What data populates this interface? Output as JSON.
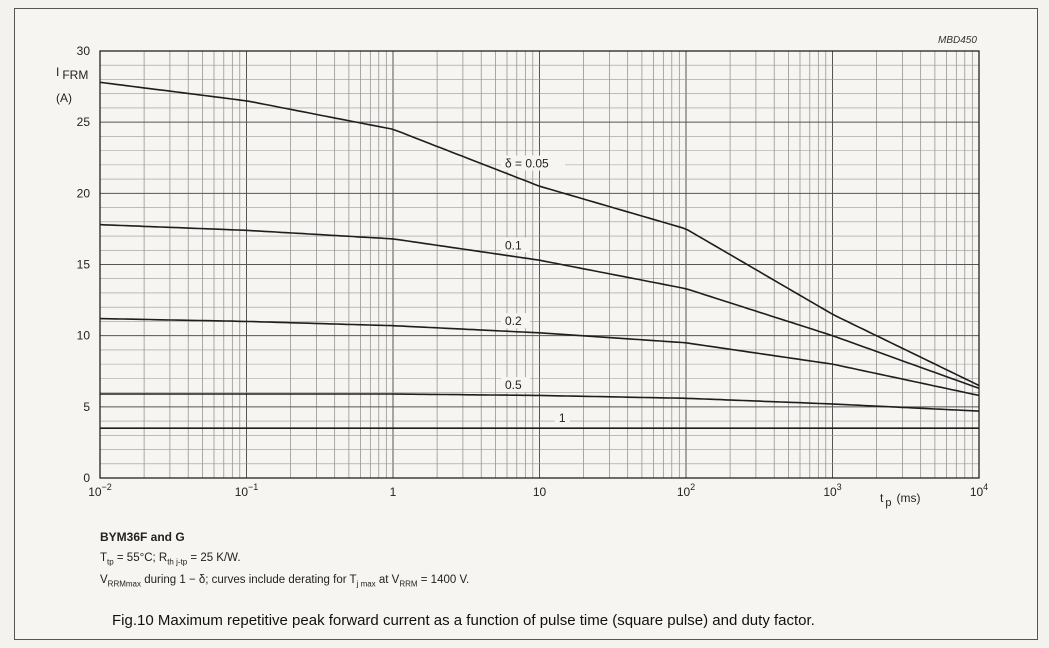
{
  "chart_data": {
    "type": "line",
    "figure_ref": "MBD450",
    "x_scale": "log",
    "xlim": [
      0.01,
      10000
    ],
    "ylim": [
      0,
      30
    ],
    "y_ticks": [
      "0",
      "5",
      "10",
      "15",
      "20",
      "25",
      "30"
    ],
    "x_ticks": [
      {
        "base": "10",
        "exp": "−2"
      },
      {
        "base": "10",
        "exp": "−1"
      },
      {
        "base": "1",
        "exp": ""
      },
      {
        "base": "10",
        "exp": ""
      },
      {
        "base": "10",
        "exp": "2"
      },
      {
        "base": "10",
        "exp": "3"
      },
      {
        "base": "10",
        "exp": "4"
      }
    ],
    "ylabel_main": "I",
    "ylabel_sub": "FRM",
    "ylabel_unit": "(A)",
    "xlabel_main": "t",
    "xlabel_sub": "p",
    "xlabel_unit": "(ms)",
    "grid": true,
    "series": [
      {
        "name": "δ = 0.05",
        "x": [
          0.01,
          0.1,
          1,
          10,
          100,
          1000,
          10000
        ],
        "y": [
          27.8,
          26.5,
          24.5,
          20.5,
          17.5,
          11.5,
          6.5
        ]
      },
      {
        "name": "0.1",
        "x": [
          0.01,
          0.1,
          1,
          10,
          100,
          1000,
          10000
        ],
        "y": [
          17.8,
          17.4,
          16.8,
          15.3,
          13.3,
          10.0,
          6.3
        ]
      },
      {
        "name": "0.2",
        "x": [
          0.01,
          0.1,
          1,
          10,
          100,
          1000,
          10000
        ],
        "y": [
          11.2,
          11.0,
          10.7,
          10.2,
          9.5,
          8.0,
          5.8
        ]
      },
      {
        "name": "0.5",
        "x": [
          0.01,
          0.1,
          1,
          10,
          100,
          1000,
          10000
        ],
        "y": [
          5.9,
          5.9,
          5.9,
          5.8,
          5.6,
          5.2,
          4.7
        ]
      },
      {
        "name": "1",
        "x": [
          0.01,
          10000
        ],
        "y": [
          3.5,
          3.5
        ]
      }
    ],
    "label_x": [
      6,
      6,
      6,
      6,
      14
    ]
  },
  "caption": {
    "title": "BYM36F and G",
    "line1_parts": [
      "T",
      "tp",
      " = 55°C; R",
      "th j-tp",
      " = 25 K/W."
    ],
    "line2_parts": [
      "V",
      "RRMmax",
      " during 1 − δ; curves include derating for T",
      "j max",
      " at V",
      "RRM",
      " = 1400 V."
    ],
    "figure": "Fig.10  Maximum repetitive peak forward current as a function of pulse time (square pulse) and duty factor."
  }
}
